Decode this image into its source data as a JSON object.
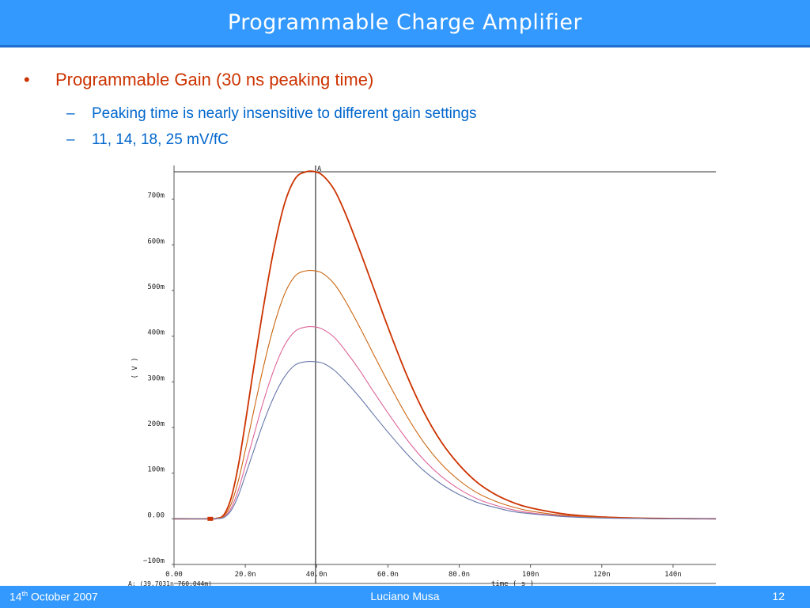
{
  "slide": {
    "title": "Programmable Charge Amplifier",
    "bullet_marker": "•",
    "bullet": "Programmable Gain (30 ns peaking time)",
    "sub_marker": "–",
    "sub_bullets": [
      "Peaking time is nearly insensitive to different gain settings",
      "11, 14, 18, 25 mV/fC"
    ]
  },
  "footer": {
    "date_day": "14",
    "date_suffix": "th",
    "date_rest": " October 2007",
    "author": "Luciano Musa",
    "page": "12"
  },
  "colors": {
    "title_bar": "#3399ff",
    "bullet": "#cc3300",
    "sub_bullet": "#0066cc",
    "series": [
      "#cc3300",
      "#cc6611",
      "#dd6699",
      "#6677aa"
    ]
  },
  "chart_data": {
    "type": "line",
    "title": "",
    "xlabel": "time ( s )",
    "ylabel": "( V )",
    "xlim": [
      0,
      152
    ],
    "ylim": [
      -100,
      760
    ],
    "x_ticks": [
      0,
      20,
      40,
      60,
      80,
      100,
      120,
      140
    ],
    "x_tick_labels": [
      "0.00",
      "20.0n",
      "40.0n",
      "60.0n",
      "80.0n",
      "100n",
      "120n",
      "140n"
    ],
    "y_ticks": [
      -100,
      0,
      100,
      200,
      300,
      400,
      500,
      600,
      700
    ],
    "y_tick_labels": [
      "−100m",
      "0.00",
      "100m",
      "200m",
      "300m",
      "400m",
      "500m",
      "600m",
      "700m"
    ],
    "grid": false,
    "x_unit": "ns",
    "y_unit": "mV",
    "series": [
      {
        "x": [
          0,
          10,
          12,
          14,
          16,
          18,
          20,
          22,
          25,
          28,
          31,
          34,
          37,
          39.7,
          42,
          45,
          48,
          52,
          56,
          60,
          65,
          70,
          75,
          80,
          85,
          90,
          95,
          100,
          110,
          120,
          130,
          140,
          152
        ],
        "values": [
          0,
          0,
          1,
          9,
          45,
          115,
          210,
          313,
          460,
          590,
          690,
          745,
          760,
          760,
          750,
          720,
          670,
          590,
          505,
          420,
          320,
          235,
          168,
          118,
          80,
          54,
          36,
          24,
          10,
          4,
          1.5,
          0.5,
          0
        ]
      },
      {
        "x": [
          0,
          10,
          12,
          14,
          16,
          18,
          20,
          22,
          25,
          28,
          31,
          34,
          37,
          39.7,
          42,
          45,
          48,
          52,
          56,
          60,
          65,
          70,
          75,
          80,
          85,
          90,
          95,
          100,
          110,
          120,
          130,
          140,
          152
        ],
        "values": [
          0,
          0,
          1,
          6,
          32,
          82,
          150,
          223,
          330,
          422,
          492,
          532,
          543,
          543,
          536,
          514,
          478,
          421,
          360,
          300,
          229,
          168,
          120,
          84,
          57,
          39,
          26,
          17,
          7,
          3,
          1,
          0.3,
          0
        ]
      },
      {
        "x": [
          0,
          10,
          12,
          14,
          16,
          18,
          20,
          22,
          25,
          28,
          31,
          34,
          37,
          39.7,
          42,
          45,
          48,
          52,
          56,
          60,
          65,
          70,
          75,
          80,
          85,
          90,
          95,
          100,
          110,
          120,
          130,
          140,
          152
        ],
        "values": [
          0,
          0,
          0.5,
          4,
          23,
          62,
          116,
          172,
          255,
          326,
          380,
          411,
          420,
          420,
          414,
          397,
          369,
          326,
          278,
          232,
          177,
          130,
          93,
          65,
          44,
          30,
          20,
          13,
          5.5,
          2,
          0.8,
          0.2,
          0
        ]
      },
      {
        "x": [
          0,
          10,
          12,
          14,
          16,
          18,
          20,
          22,
          25,
          28,
          31,
          34,
          37,
          39.7,
          42,
          45,
          48,
          52,
          56,
          60,
          65,
          70,
          75,
          80,
          85,
          90,
          95,
          100,
          110,
          120,
          130,
          140,
          152
        ],
        "values": [
          0,
          0,
          0.3,
          3,
          18,
          50,
          95,
          141,
          209,
          267,
          311,
          337,
          344,
          344,
          340,
          325,
          302,
          267,
          228,
          190,
          145,
          106,
          76,
          53,
          36,
          25,
          16,
          11,
          4.5,
          1.7,
          0.6,
          0.2,
          0
        ]
      }
    ],
    "marker": {
      "label": "A",
      "x": 39.7031,
      "y": 760.044
    },
    "readout": "A: (39.7031n 760.044m)"
  }
}
